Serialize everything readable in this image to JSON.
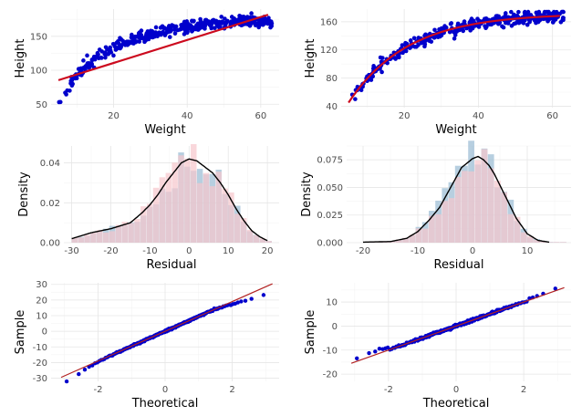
{
  "colors": {
    "point": "#0000cc",
    "fit_line": "#cc0a1e",
    "density": "#000000",
    "hist_blue": "#9fbfd6",
    "hist_pink": "#f6c6cc",
    "qq_line": "#b22222"
  },
  "chart_data": [
    {
      "id": "tl",
      "type": "scatter",
      "xlabel": "Weight",
      "ylabel": "Height",
      "xlim": [
        3,
        65
      ],
      "ylim": [
        45,
        190
      ],
      "xticks": [
        20,
        40,
        60
      ],
      "yticks": [
        50,
        100,
        150
      ],
      "trend": "linear",
      "fit": {
        "slope": 1.69,
        "intercept": 77
      },
      "points_sample": [
        [
          5,
          53
        ],
        [
          8,
          60
        ],
        [
          10,
          70
        ],
        [
          12,
          85
        ],
        [
          15,
          105
        ],
        [
          20,
          125
        ],
        [
          25,
          135
        ],
        [
          30,
          145
        ],
        [
          35,
          150
        ],
        [
          40,
          155
        ],
        [
          45,
          160
        ],
        [
          50,
          165
        ],
        [
          55,
          168
        ],
        [
          60,
          170
        ],
        [
          62,
          163
        ]
      ]
    },
    {
      "id": "tr",
      "type": "scatter",
      "xlabel": "Weight",
      "ylabel": "Height",
      "xlim": [
        3,
        65
      ],
      "ylim": [
        38,
        178
      ],
      "xticks": [
        20,
        40,
        60
      ],
      "yticks": [
        40,
        80,
        120,
        160
      ],
      "trend": "curve",
      "points_sample": [
        [
          5,
          50
        ],
        [
          8,
          62
        ],
        [
          10,
          75
        ],
        [
          12,
          85
        ],
        [
          15,
          98
        ],
        [
          20,
          115
        ],
        [
          25,
          125
        ],
        [
          30,
          135
        ],
        [
          35,
          145
        ],
        [
          40,
          152
        ],
        [
          45,
          158
        ],
        [
          50,
          162
        ],
        [
          55,
          166
        ],
        [
          60,
          169
        ],
        [
          63,
          165
        ]
      ]
    },
    {
      "id": "ml",
      "type": "histogram",
      "xlabel": "Residual",
      "ylabel": "Density",
      "xlim": [
        -32,
        23
      ],
      "ylim": [
        0,
        0.0485
      ],
      "xticks": [
        -30,
        -20,
        -10,
        0,
        10,
        20
      ],
      "yticks": [
        0.0,
        0.02,
        0.04
      ],
      "ytick_labels": [
        "0.00",
        "0.02",
        "0.04"
      ],
      "bins": {
        "start": -30,
        "width": 1.6
      },
      "density_x": [
        -30,
        -25,
        -20,
        -15,
        -12,
        -10,
        -8,
        -6,
        -4,
        -2,
        0,
        2,
        4,
        6,
        8,
        10,
        12,
        14,
        16,
        18,
        20
      ],
      "density_y": [
        0.002,
        0.005,
        0.007,
        0.01,
        0.015,
        0.019,
        0.024,
        0.03,
        0.035,
        0.04,
        0.042,
        0.041,
        0.038,
        0.035,
        0.03,
        0.024,
        0.017,
        0.011,
        0.006,
        0.003,
        0.001
      ]
    },
    {
      "id": "mr",
      "type": "histogram",
      "xlabel": "Residual",
      "ylabel": "Density",
      "xlim": [
        -23,
        18
      ],
      "ylim": [
        0,
        0.0875
      ],
      "xticks": [
        -20,
        -10,
        0,
        10
      ],
      "yticks": [
        0.0,
        0.025,
        0.05,
        0.075
      ],
      "ytick_labels": [
        "0.000",
        "0.025",
        "0.050",
        "0.075"
      ],
      "bins": {
        "start": -20,
        "width": 1.2
      },
      "density_x": [
        -20,
        -15,
        -12,
        -10,
        -8,
        -6,
        -4,
        -2,
        0,
        1,
        2,
        3,
        4,
        6,
        8,
        10,
        12,
        14
      ],
      "density_y": [
        0.0005,
        0.001,
        0.004,
        0.01,
        0.02,
        0.032,
        0.05,
        0.068,
        0.076,
        0.078,
        0.075,
        0.07,
        0.062,
        0.042,
        0.022,
        0.008,
        0.002,
        0.0005
      ]
    },
    {
      "id": "bl",
      "type": "scatter",
      "xlabel": "Theoretical",
      "ylabel": "Sample",
      "xlim": [
        -3.4,
        3.4
      ],
      "ylim": [
        -32,
        31
      ],
      "xticks": [
        -2,
        0,
        2
      ],
      "yticks": [
        -30,
        -20,
        -10,
        0,
        10,
        20,
        30
      ],
      "qq_line": {
        "slope": 9.5,
        "intercept": 0
      }
    },
    {
      "id": "br",
      "type": "scatter",
      "xlabel": "Theoretical",
      "ylabel": "Sample",
      "xlim": [
        -3.4,
        3.4
      ],
      "ylim": [
        -23,
        18
      ],
      "xticks": [
        -2,
        0,
        2
      ],
      "yticks": [
        -20,
        -10,
        0,
        10
      ],
      "qq_line": {
        "slope": 5.0,
        "intercept": 0
      }
    }
  ]
}
